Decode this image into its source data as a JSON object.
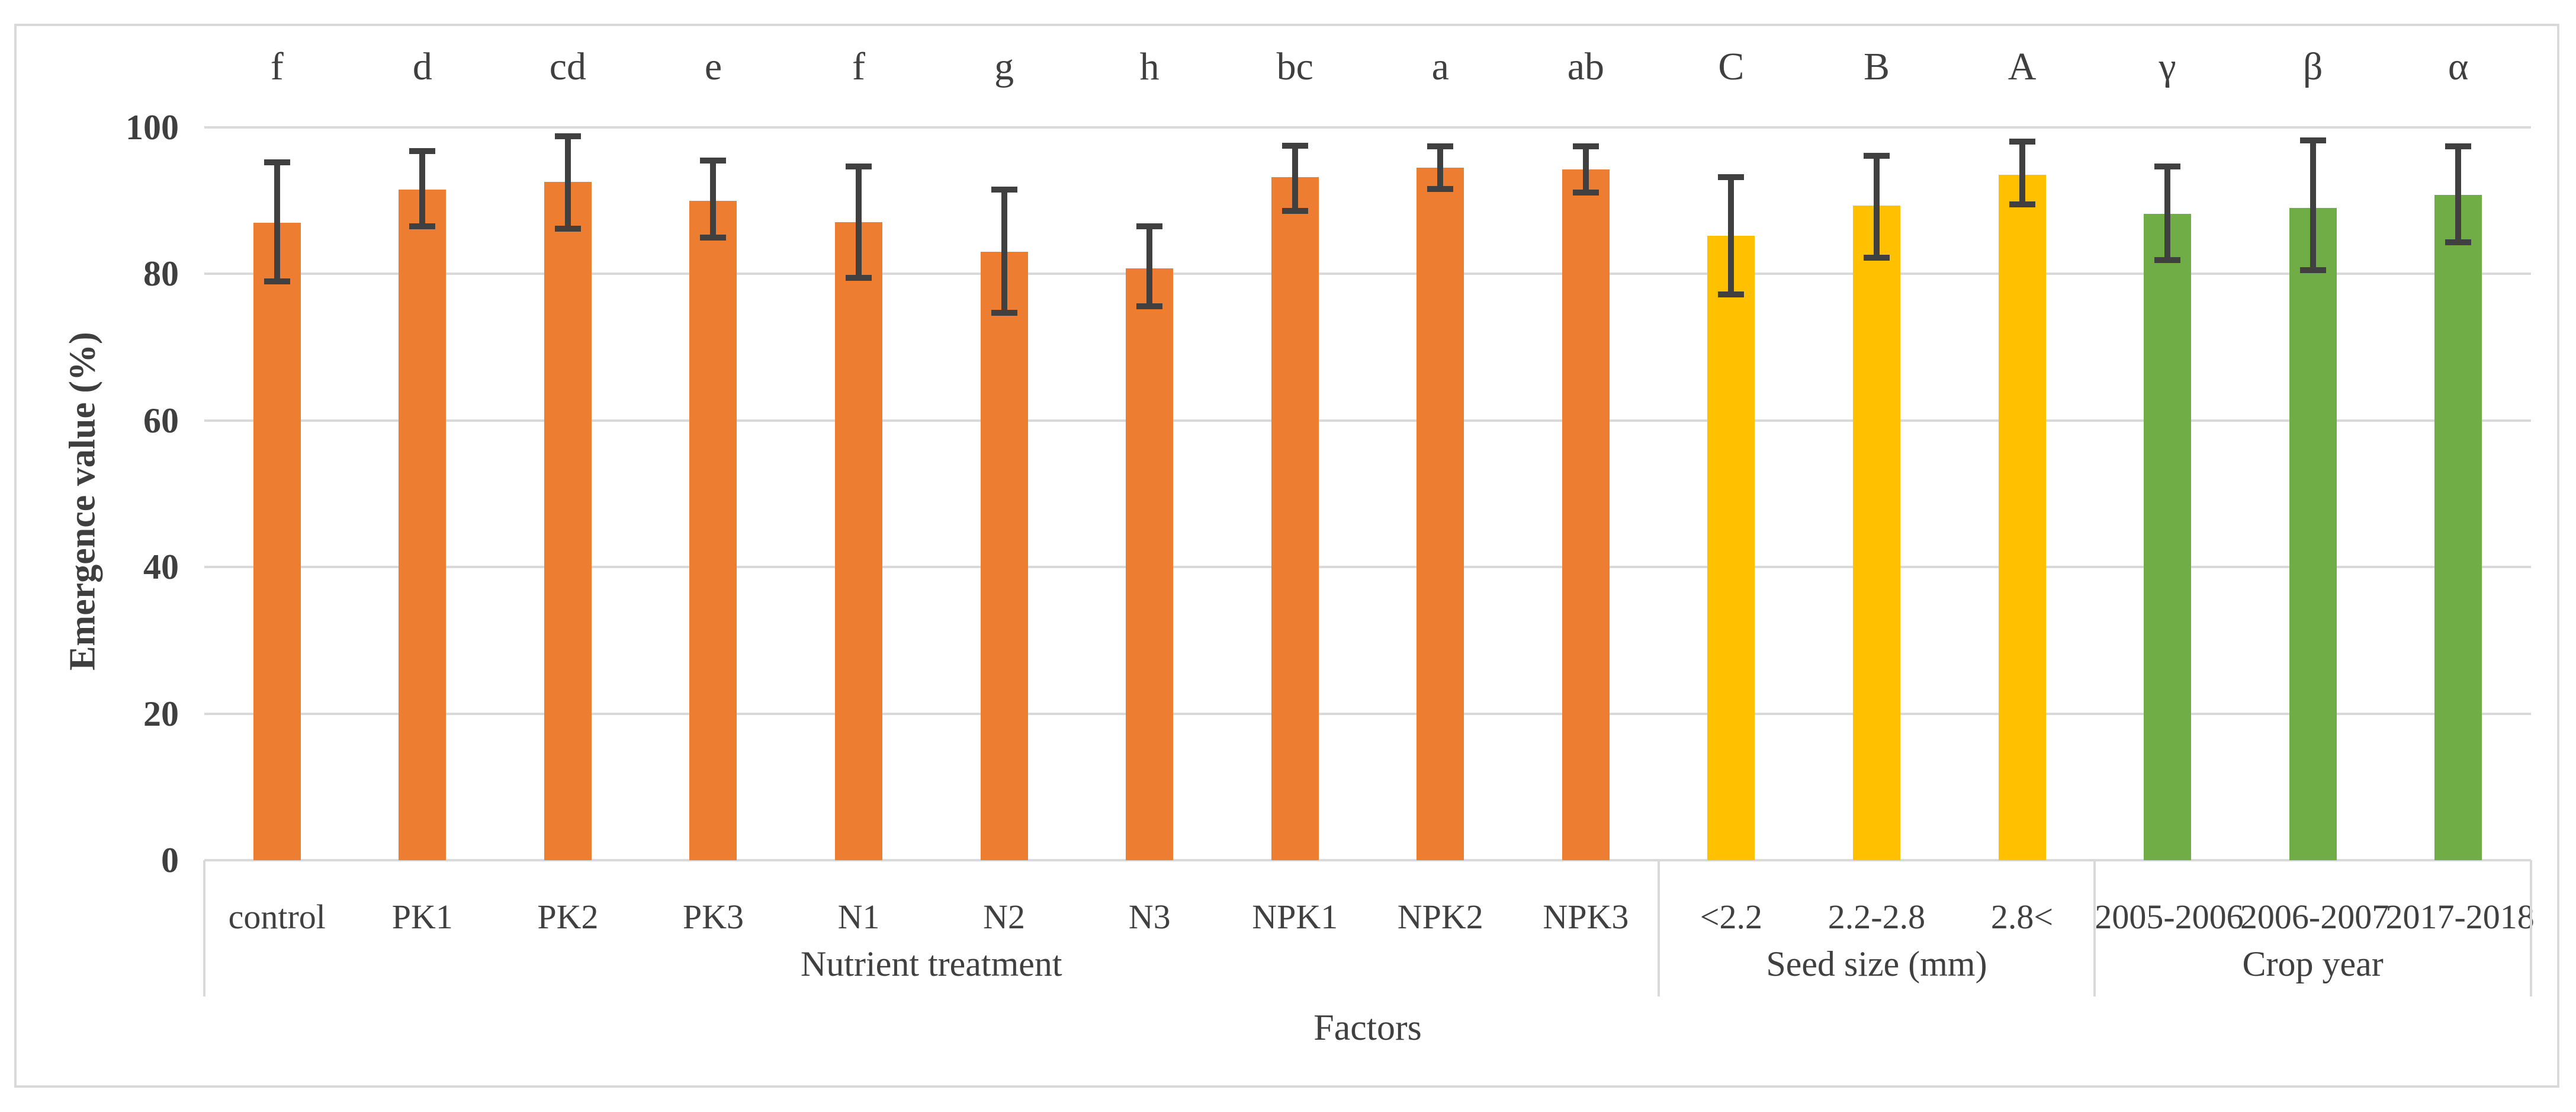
{
  "chart_data": {
    "type": "bar",
    "title": "",
    "ylabel": "Emergence value (%)",
    "xlabel": "Factors",
    "ylim": [
      0,
      100
    ],
    "yticks": [
      100,
      80,
      60,
      40,
      20,
      0
    ],
    "grid": "horizontal",
    "legend": "none",
    "error_bars": true,
    "style": {
      "gridline_color": "#d9d9d9",
      "error_bar_color": "#404040",
      "text_color": "#404040",
      "border_color": "#d9d9d9"
    },
    "groups": [
      {
        "name": "Nutrient treatment",
        "color": "#ED7D31",
        "bars": [
          {
            "label": "control",
            "letter": "f",
            "value": 87.0,
            "err_up": 8.2,
            "err_down": 8.0
          },
          {
            "label": "PK1",
            "letter": "d",
            "value": 91.5,
            "err_up": 5.3,
            "err_down": 5.0
          },
          {
            "label": "PK2",
            "letter": "cd",
            "value": 92.6,
            "err_up": 6.2,
            "err_down": 6.4
          },
          {
            "label": "PK3",
            "letter": "e",
            "value": 90.0,
            "err_up": 5.5,
            "err_down": 5.0
          },
          {
            "label": "N1",
            "letter": "f",
            "value": 87.1,
            "err_up": 7.6,
            "err_down": 7.6
          },
          {
            "label": "N2",
            "letter": "g",
            "value": 83.0,
            "err_up": 8.5,
            "err_down": 8.3
          },
          {
            "label": "N3",
            "letter": "h",
            "value": 80.8,
            "err_up": 5.7,
            "err_down": 5.2
          },
          {
            "label": "NPK1",
            "letter": "bc",
            "value": 93.2,
            "err_up": 4.3,
            "err_down": 4.6
          },
          {
            "label": "NPK2",
            "letter": "a",
            "value": 94.5,
            "err_up": 2.9,
            "err_down": 2.9
          },
          {
            "label": "NPK3",
            "letter": "ab",
            "value": 94.3,
            "err_up": 3.1,
            "err_down": 3.2
          }
        ]
      },
      {
        "name": "Seed size (mm)",
        "color": "#FFC000",
        "bars": [
          {
            "label": "<2.2",
            "letter": "C",
            "value": 85.2,
            "err_up": 8.0,
            "err_down": 8.0
          },
          {
            "label": "2.2-2.8",
            "letter": "B",
            "value": 89.3,
            "err_up": 6.8,
            "err_down": 7.1
          },
          {
            "label": "2.8<",
            "letter": "A",
            "value": 93.5,
            "err_up": 4.6,
            "err_down": 4.0
          }
        ]
      },
      {
        "name": "Crop year",
        "color": "#70AD47",
        "bars": [
          {
            "label": "2005-2006",
            "letter": "γ",
            "value": 88.2,
            "err_up": 6.5,
            "err_down": 6.3
          },
          {
            "label": "2006-2007",
            "letter": "β",
            "value": 89.0,
            "err_up": 9.2,
            "err_down": 8.5
          },
          {
            "label": "2017-2018",
            "letter": "α",
            "value": 90.8,
            "err_up": 6.6,
            "err_down": 6.5
          }
        ]
      }
    ]
  }
}
